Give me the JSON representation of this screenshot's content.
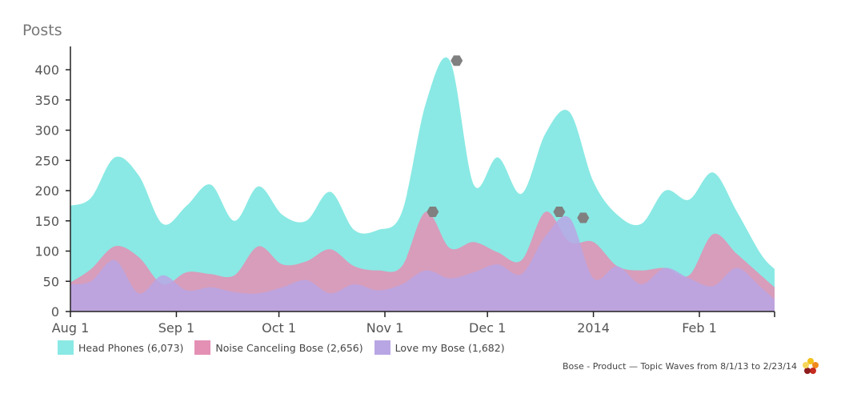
{
  "chart_data": {
    "type": "area",
    "ylabel": "Posts",
    "ylim": [
      0,
      420
    ],
    "yticks": [
      0,
      50,
      100,
      150,
      200,
      250,
      300,
      350,
      400
    ],
    "xlim": [
      "2013-08-01",
      "2014-02-23"
    ],
    "xticks": [
      {
        "date": "2013-08-01",
        "label": "Aug 1"
      },
      {
        "date": "2013-09-01",
        "label": "Sep 1"
      },
      {
        "date": "2013-10-01",
        "label": "Oct 1"
      },
      {
        "date": "2013-11-01",
        "label": "Nov 1"
      },
      {
        "date": "2013-12-01",
        "label": "Dec 1"
      },
      {
        "date": "2014-01-01",
        "label": "2014"
      },
      {
        "date": "2014-02-01",
        "label": "Feb 1"
      }
    ],
    "x": [
      "2013-08-01",
      "2013-08-07",
      "2013-08-14",
      "2013-08-21",
      "2013-08-28",
      "2013-09-04",
      "2013-09-11",
      "2013-09-18",
      "2013-09-25",
      "2013-10-02",
      "2013-10-09",
      "2013-10-16",
      "2013-10-23",
      "2013-10-30",
      "2013-11-06",
      "2013-11-13",
      "2013-11-20",
      "2013-11-27",
      "2013-12-04",
      "2013-12-11",
      "2013-12-18",
      "2013-12-25",
      "2014-01-01",
      "2014-01-08",
      "2014-01-15",
      "2014-01-22",
      "2014-01-29",
      "2014-02-05",
      "2014-02-12",
      "2014-02-19",
      "2014-02-23"
    ],
    "series": [
      {
        "name": "Head Phones (6,073)",
        "color": "#8ae9e4",
        "values": [
          175,
          188,
          255,
          225,
          145,
          175,
          210,
          150,
          207,
          160,
          150,
          198,
          135,
          135,
          165,
          345,
          415,
          210,
          255,
          195,
          295,
          330,
          215,
          160,
          145,
          200,
          185,
          230,
          165,
          95,
          70
        ]
      },
      {
        "name": "Noise Canceling Bose (2,656)",
        "color": "#e48fb4",
        "values": [
          48,
          70,
          108,
          90,
          45,
          65,
          62,
          60,
          108,
          78,
          83,
          103,
          75,
          68,
          75,
          165,
          105,
          115,
          98,
          85,
          165,
          115,
          115,
          75,
          68,
          72,
          60,
          128,
          95,
          60,
          40
        ]
      },
      {
        "name": "Love my Bose (1,682)",
        "color": "#b8a6e4",
        "values": [
          45,
          50,
          85,
          30,
          60,
          35,
          40,
          32,
          30,
          40,
          52,
          30,
          45,
          35,
          45,
          68,
          55,
          65,
          78,
          62,
          125,
          155,
          55,
          75,
          45,
          72,
          55,
          42,
          72,
          40,
          20
        ]
      }
    ],
    "markers": [
      {
        "date": "2013-11-22",
        "value": 415
      },
      {
        "date": "2013-11-15",
        "value": 165
      },
      {
        "date": "2013-12-22",
        "value": 165
      },
      {
        "date": "2013-12-29",
        "value": 155
      }
    ],
    "marker_color": "#808080",
    "legend_position": "bottom-left",
    "grid": false
  },
  "footer": {
    "caption": "Bose - Product — Topic Waves from 8/1/13 to 2/23/14",
    "logo_icon": "flower-logo-icon"
  }
}
